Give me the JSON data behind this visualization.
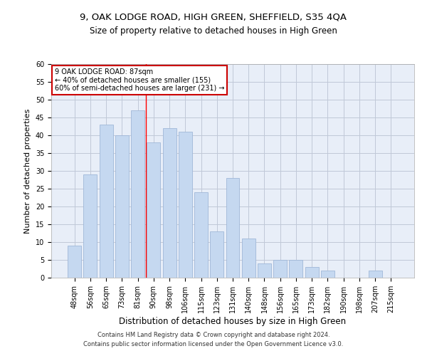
{
  "title": "9, OAK LODGE ROAD, HIGH GREEN, SHEFFIELD, S35 4QA",
  "subtitle": "Size of property relative to detached houses in High Green",
  "xlabel": "Distribution of detached houses by size in High Green",
  "ylabel": "Number of detached properties",
  "categories": [
    "48sqm",
    "56sqm",
    "65sqm",
    "73sqm",
    "81sqm",
    "90sqm",
    "98sqm",
    "106sqm",
    "115sqm",
    "123sqm",
    "131sqm",
    "140sqm",
    "148sqm",
    "156sqm",
    "165sqm",
    "173sqm",
    "182sqm",
    "190sqm",
    "198sqm",
    "207sqm",
    "215sqm"
  ],
  "values": [
    9,
    29,
    43,
    40,
    47,
    38,
    42,
    41,
    24,
    13,
    28,
    11,
    4,
    5,
    5,
    3,
    2,
    0,
    0,
    2,
    0
  ],
  "bar_color": "#c5d8f0",
  "bar_edge_color": "#a0b8d8",
  "grid_color": "#c0c8d8",
  "background_color": "#e8eef8",
  "red_line_x": 4.5,
  "annotation_text": "9 OAK LODGE ROAD: 87sqm\n← 40% of detached houses are smaller (155)\n60% of semi-detached houses are larger (231) →",
  "annotation_box_color": "#ffffff",
  "annotation_box_edge": "#cc0000",
  "ylim": [
    0,
    60
  ],
  "yticks": [
    0,
    5,
    10,
    15,
    20,
    25,
    30,
    35,
    40,
    45,
    50,
    55,
    60
  ],
  "footer1": "Contains HM Land Registry data © Crown copyright and database right 2024.",
  "footer2": "Contains public sector information licensed under the Open Government Licence v3.0.",
  "title_fontsize": 9.5,
  "subtitle_fontsize": 8.5,
  "ylabel_fontsize": 8,
  "xlabel_fontsize": 8.5,
  "tick_fontsize": 7,
  "footer_fontsize": 6,
  "annot_fontsize": 7
}
